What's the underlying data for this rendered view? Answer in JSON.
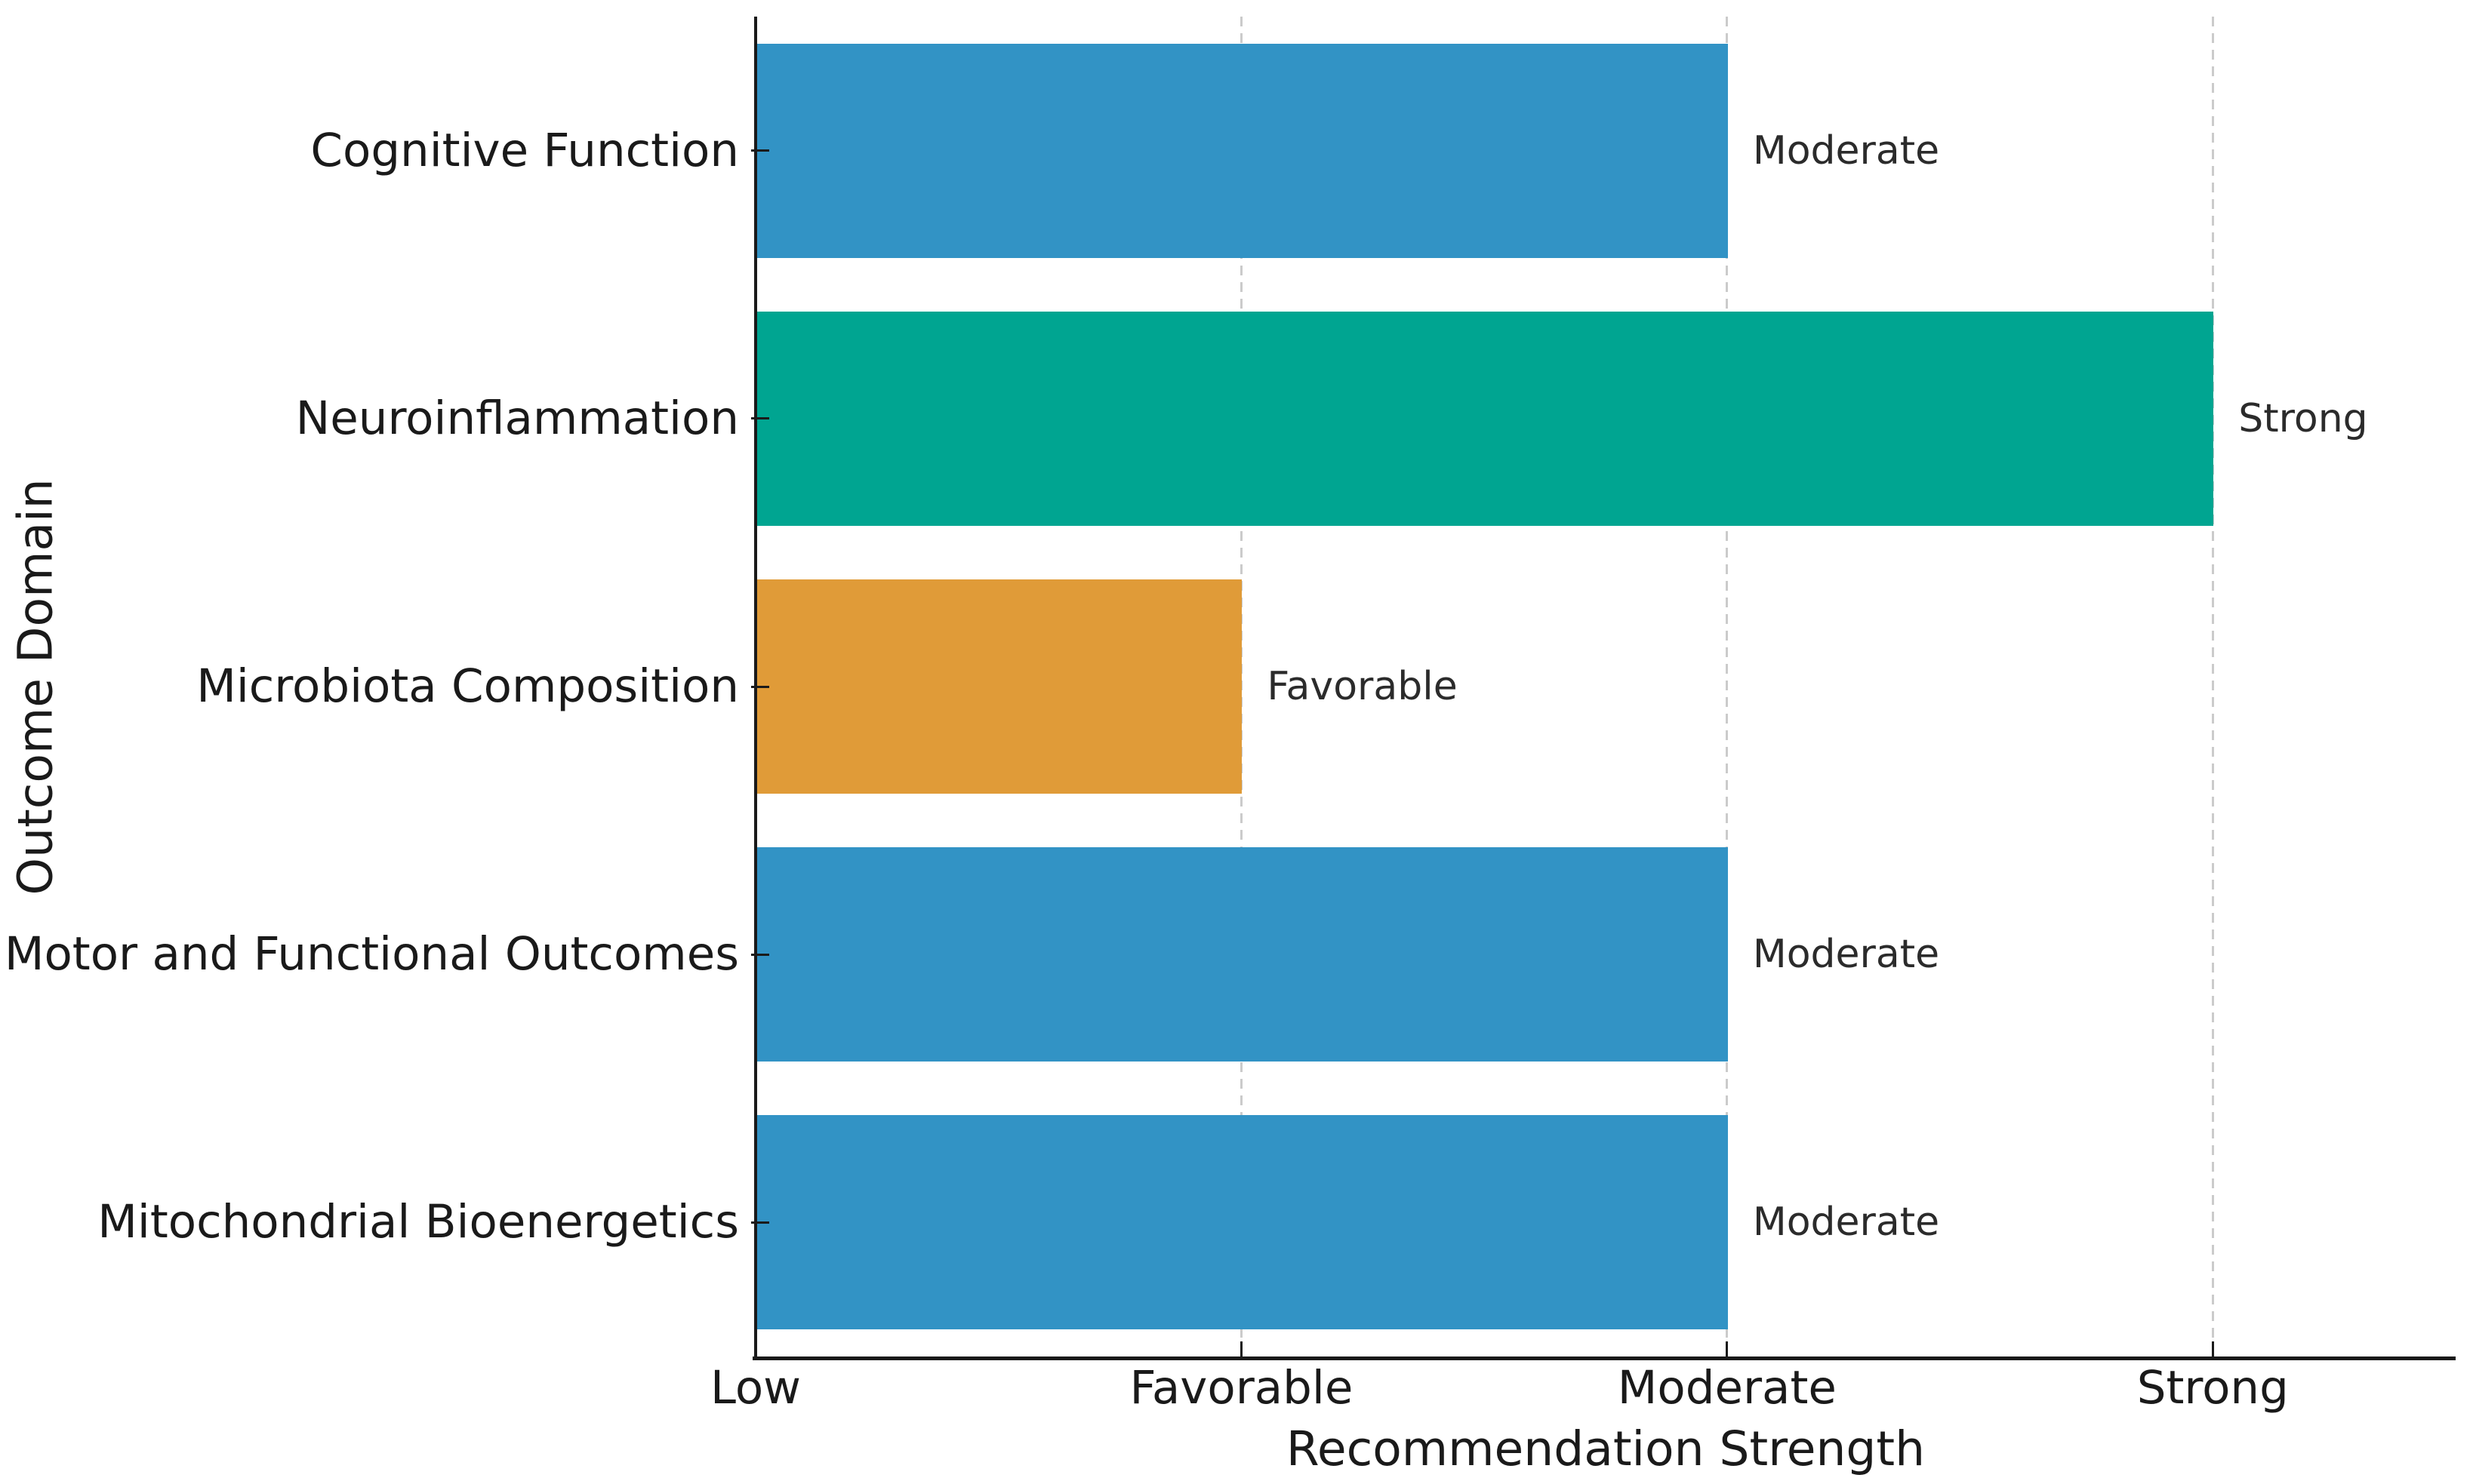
{
  "chart_data": {
    "type": "bar",
    "orientation": "horizontal",
    "title": "",
    "xlabel": "Recommendation Strength",
    "ylabel": "Outcome Domain",
    "categories": [
      "Cognitive Function",
      "Neuroinflammation",
      "Microbiota Composition",
      "Motor and Functional Outcomes",
      "Mitochondrial Bioenergetics"
    ],
    "series": [
      {
        "name": "Recommendation Strength",
        "values": [
          2,
          3,
          1,
          2,
          2
        ]
      }
    ],
    "value_labels": [
      "Moderate",
      "Strong",
      "Favorable",
      "Moderate",
      "Moderate"
    ],
    "bar_colors": [
      "#3293C5",
      "#00A591",
      "#E09B38",
      "#3293C5",
      "#3293C5"
    ],
    "x_ticks": [
      {
        "label": "Low",
        "value": 0
      },
      {
        "label": "Favorable",
        "value": 1
      },
      {
        "label": "Moderate",
        "value": 2
      },
      {
        "label": "Strong",
        "value": 3
      }
    ],
    "xlim": [
      0,
      3.5
    ],
    "grid": {
      "axis": "x",
      "style": "dashed",
      "color": "#CBCBCB",
      "at": [
        1,
        2,
        3
      ]
    },
    "legend": "none"
  },
  "colors": {
    "background": "#FFFFFF",
    "spine": "#1A1A1A",
    "tick_label": "#1A1A1A",
    "value_label": "#2B2B2B",
    "gridline": "#CBCBCB"
  }
}
